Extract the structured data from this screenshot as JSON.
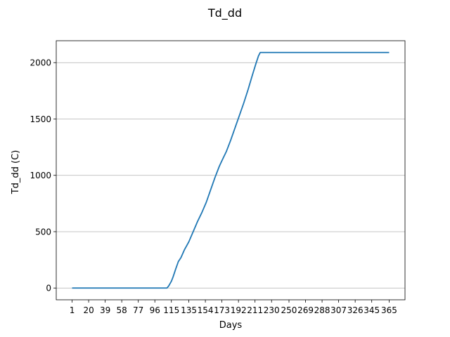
{
  "chart_data": {
    "type": "line",
    "title": "Td_dd",
    "xlabel": "Days",
    "ylabel": "Td_dd (C)",
    "xlim": [
      -17.2,
      383.2
    ],
    "ylim": [
      -104.5,
      2194.5
    ],
    "grid": {
      "x": false,
      "y": true
    },
    "x_ticks": [
      1,
      20,
      39,
      58,
      77,
      96,
      115,
      135,
      154,
      173,
      192,
      211,
      230,
      250,
      269,
      288,
      307,
      326,
      345,
      365
    ],
    "y_ticks": [
      0,
      500,
      1000,
      1500,
      2000
    ],
    "series": [
      {
        "color": "#1f77b4",
        "points": [
          [
            1,
            0
          ],
          [
            20,
            0
          ],
          [
            40,
            0
          ],
          [
            60,
            0
          ],
          [
            80,
            0
          ],
          [
            100,
            0
          ],
          [
            110,
            0
          ],
          [
            112,
            20
          ],
          [
            115,
            60
          ],
          [
            117,
            100
          ],
          [
            120,
            170
          ],
          [
            123,
            235
          ],
          [
            126,
            270
          ],
          [
            130,
            340
          ],
          [
            135,
            410
          ],
          [
            140,
            500
          ],
          [
            145,
            590
          ],
          [
            150,
            670
          ],
          [
            155,
            760
          ],
          [
            160,
            870
          ],
          [
            165,
            980
          ],
          [
            170,
            1080
          ],
          [
            173,
            1130
          ],
          [
            178,
            1210
          ],
          [
            183,
            1310
          ],
          [
            188,
            1420
          ],
          [
            193,
            1530
          ],
          [
            198,
            1640
          ],
          [
            203,
            1760
          ],
          [
            208,
            1890
          ],
          [
            212,
            1990
          ],
          [
            215,
            2060
          ],
          [
            217,
            2090
          ],
          [
            250,
            2090
          ],
          [
            300,
            2090
          ],
          [
            365,
            2090
          ]
        ]
      }
    ]
  }
}
